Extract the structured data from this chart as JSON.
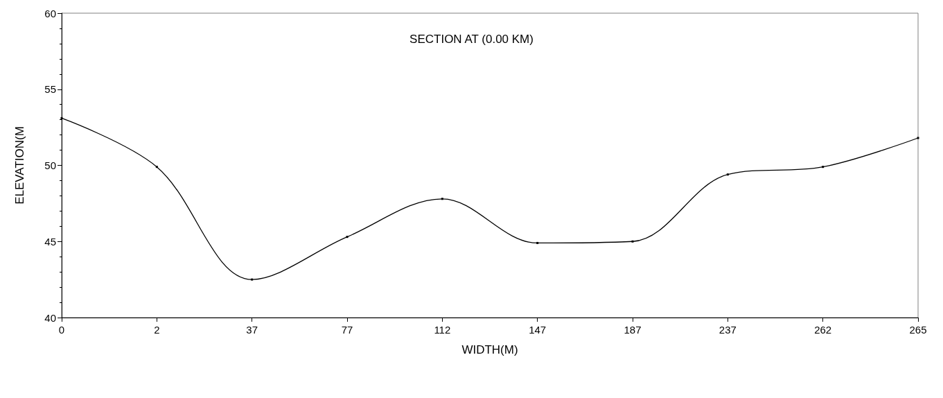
{
  "chart_data": {
    "type": "line",
    "title": "SECTION AT (0.00 KM)",
    "xlabel": "WIDTH(M)",
    "ylabel": "ELEVATION(M",
    "categories": [
      "0",
      "2",
      "37",
      "77",
      "112",
      "147",
      "187",
      "237",
      "262",
      "265"
    ],
    "series": [
      {
        "color": "#000000",
        "values": [
          53.1,
          49.9,
          42.5,
          45.3,
          47.8,
          44.9,
          45.0,
          49.4,
          49.9,
          51.8
        ]
      }
    ],
    "ylim": [
      40,
      60
    ],
    "yticks": [
      40,
      45,
      50,
      55,
      60
    ],
    "grid": false,
    "marker": "square",
    "line_style": "solid"
  }
}
